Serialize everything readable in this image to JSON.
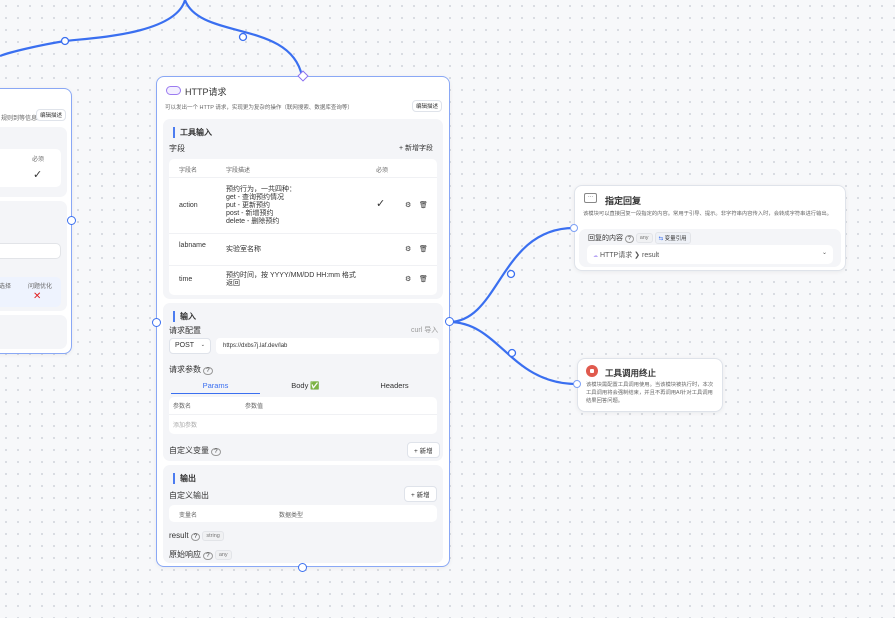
{
  "colors": {
    "accent": "#3a6ff0",
    "edge": "#3a6ff0",
    "stop": "#e05a4e",
    "error": "#e02020"
  },
  "left_node": {
    "desc_tail": "规则到等信息。",
    "edit_desc": "编辑描述",
    "required_header": "必须",
    "check": "✓",
    "col_tail": "选择",
    "col_optimize": "问题优化",
    "x_mark": "✕"
  },
  "http_node": {
    "icon": "cloud-http-icon",
    "title": "HTTP请求",
    "description": "可以发出一个 HTTP 请求，实现更为复杂的操作（联网搜索、数据库查询等）",
    "edit_desc": "编辑描述",
    "tool_input": {
      "title": "工具输入",
      "fields_label": "字段",
      "add_field": "+ 新增字段",
      "headers": [
        "字段名",
        "字段描述",
        "必须"
      ],
      "rows": [
        {
          "name": "action",
          "desc": [
            "预约行为，一共四种：",
            "get - 查询预约情况",
            "put - 更新预约",
            "post - 新增预约",
            "delete - 删除预约"
          ],
          "required": "✓"
        },
        {
          "name": "labname",
          "desc": [
            "实验室名称"
          ],
          "required": ""
        },
        {
          "name": "time",
          "desc": [
            "预约时间，按 YYYY/MM/DD HH:mm 格式",
            "返回"
          ],
          "required": ""
        }
      ]
    },
    "input": {
      "title": "输入",
      "request_config": "请求配置",
      "curl_import": "curl 导入",
      "method": "POST",
      "url": "https://dxbs7j.laf.dev/lab",
      "request_params": "请求参数",
      "tabs": [
        {
          "label": "Params",
          "active": true
        },
        {
          "label": "Body ✅",
          "active": false
        },
        {
          "label": "Headers",
          "active": false
        }
      ],
      "param_headers": [
        "参数名",
        "参数值"
      ],
      "add_param_placeholder": "添加参数",
      "custom_var": "自定义变量",
      "add": "+ 新增"
    },
    "output": {
      "title": "输出",
      "custom_output": "自定义输出",
      "add": "+ 新增",
      "headers": [
        "变量名",
        "数据类型"
      ],
      "items": [
        {
          "name": "result",
          "type": "string"
        },
        {
          "name": "原始响应",
          "type": "any"
        }
      ]
    }
  },
  "reply_node": {
    "title": "指定回复",
    "description": "该模块可以直接回复一段指定的内容。常用于引导、提示。非字符串内容传入时，会转成字符串进行输出。",
    "content_label": "回复的内容",
    "type": "any",
    "var_ref": "变量引用",
    "selected_source": "HTTP请求",
    "selected_field": "result"
  },
  "stop_node": {
    "title": "工具调用终止",
    "description": "该模块需配置工具调用使用。当该模块被执行时，本次工具调用将会强制结束，并且不再调用AI针对工具调用结果回答问题。"
  }
}
